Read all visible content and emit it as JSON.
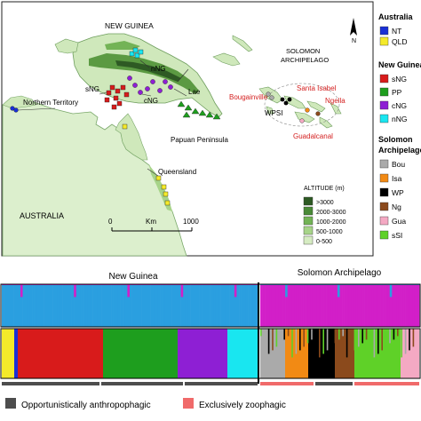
{
  "map": {
    "regions": {
      "new_guinea": "NEW GUINEA",
      "solomon": [
        "SOLOMON",
        "ARCHIPELAGO"
      ],
      "northern_territory": "Northern Territory",
      "australia": "AUSTRALIA",
      "queensland": "Queensland",
      "papuan_peninsula": "Papuan Peninsula"
    },
    "places": {
      "nng": "nNG",
      "sng": "sNG",
      "cng": "cNG",
      "lae": "Lae",
      "bougainville": "Bougainville",
      "santa_isabel": "Santa Isabel",
      "ngella": "Ngella",
      "wpsi": "WPSI",
      "guadalcanal": "Guadalcanal"
    },
    "scale": {
      "start": "0",
      "unit": "Km",
      "end": "1000"
    },
    "north": "N",
    "altitude": {
      "title": "ALTITUDE (m)",
      "classes": [
        {
          "label": ">3000",
          "color": "#2e5a24"
        },
        {
          "label": "2000-3000",
          "color": "#4a8a38"
        },
        {
          "label": "1000-2000",
          "color": "#73b356"
        },
        {
          "label": "500-1000",
          "color": "#a7d489"
        },
        {
          "label": "0-500",
          "color": "#d6ecc2"
        }
      ]
    }
  },
  "legend": {
    "australia": {
      "title": "Australia",
      "items": [
        {
          "label": "NT",
          "color": "#1a2fd6"
        },
        {
          "label": "QLD",
          "color": "#f4ea2a"
        }
      ]
    },
    "new_guinea": {
      "title": "New Guinea",
      "items": [
        {
          "label": "sNG",
          "color": "#d81b1b"
        },
        {
          "label": "PP",
          "color": "#1e9e1e"
        },
        {
          "label": "cNG",
          "color": "#8e1fd4"
        },
        {
          "label": "nNG",
          "color": "#19e6f0"
        }
      ]
    },
    "solomon": {
      "title": [
        "Solomon",
        "Archipelago"
      ],
      "items": [
        {
          "label": "Bou",
          "color": "#aaaaaa"
        },
        {
          "label": "Isa",
          "color": "#f28a14"
        },
        {
          "label": "WP",
          "color": "#000000"
        },
        {
          "label": "Ng",
          "color": "#8b4a1c"
        },
        {
          "label": "Gua",
          "color": "#f4a9c3"
        },
        {
          "label": "sSI",
          "color": "#5fd128"
        }
      ]
    }
  },
  "structure": {
    "headers": {
      "new_guinea": "New Guinea",
      "solomon": "Solomon Archipelago"
    },
    "k2_colors": [
      "#2a9fe0",
      "#d21fc8"
    ],
    "behaviour": [
      {
        "label": "Opportunistically anthropophagic",
        "color": "#4d4d4d"
      },
      {
        "label": "Exclusively zoophagic",
        "color": "#f06a6a"
      }
    ],
    "k_rows": [
      {
        "panel": "New Guinea",
        "segments": [
          {
            "color": "#2a9fe0",
            "share": 0.97
          },
          {
            "color": "#d21fc8",
            "share": 0.03
          }
        ]
      },
      {
        "panel": "Solomon Archipelago",
        "segments": [
          {
            "color": "#d21fc8",
            "share": 0.97
          },
          {
            "color": "#2a9fe0",
            "share": 0.03
          }
        ]
      }
    ]
  }
}
